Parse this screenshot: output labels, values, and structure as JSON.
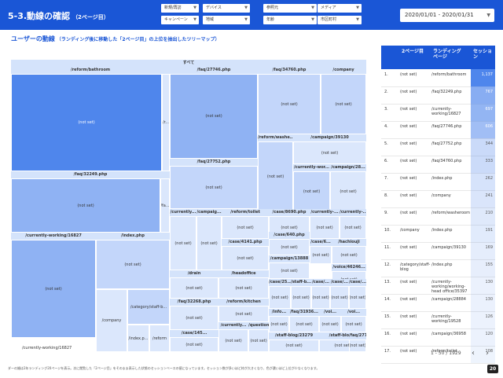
{
  "header": {
    "title": "5-3.動線の確認",
    "subtitle": "（2ページ目）",
    "filters": [
      "新規/再訪",
      "デバイス",
      "参照元",
      "メディア",
      "キャンペーン",
      "地域",
      "年齢",
      "市区町村"
    ],
    "date_range": "2020/01/01 - 2020/01/31"
  },
  "section": {
    "title": "ユーザーの動線",
    "note": "（ランディング後に移動した「2ページ目」の上位を抽出したツリーマップ）"
  },
  "treemap": {
    "root_label": "すべて",
    "groups": [
      {
        "label": "/reform/bathroom",
        "leaves": [
          "(not set)",
          "/r..."
        ]
      },
      {
        "label": "/faq/27746.php",
        "leaves": [
          "(not set)"
        ]
      },
      {
        "label": "/faq/34760.php",
        "leaves": [
          "(not set)"
        ]
      },
      {
        "label": "/company",
        "leaves": [
          "(not set)"
        ]
      },
      {
        "label": "/reform/washe...",
        "leaves": [
          "(not set)"
        ]
      },
      {
        "label": "/campaign/39130",
        "leaves": [
          "(not set)"
        ]
      },
      {
        "label": "/currently-wor...",
        "leaves": [
          "(not set)"
        ]
      },
      {
        "label": "/campaign/28...",
        "leaves": [
          "(not set)"
        ]
      },
      {
        "label": "/faq/32249.php",
        "leaves": [
          "(not set)",
          "/fa..."
        ]
      },
      {
        "label": "/faq/27752.php",
        "leaves": [
          "(not set)"
        ]
      },
      {
        "label": "/currently-working/16827",
        "leaves": [
          "(not set)"
        ],
        "foot": "/currently-working/16827"
      },
      {
        "label": "/index.php",
        "leaves": [
          "(not set)",
          "/category/staff-b...",
          "/company",
          "/index.p...",
          "/reform"
        ]
      },
      {
        "label": "/currently...",
        "leaves": [
          "(not set)"
        ]
      },
      {
        "label": "/campaig...",
        "leaves": [
          "(not set)"
        ]
      },
      {
        "label": "/reform/toilet",
        "leaves": [
          "(not set)"
        ]
      },
      {
        "label": "/case/8690.php",
        "leaves": [
          "(not set)"
        ]
      },
      {
        "label": "/currently-...",
        "leaves": [
          "(not set)"
        ]
      },
      {
        "label": "/currently-...",
        "leaves": [
          "(not set)"
        ]
      },
      {
        "label": "/case/4141.php",
        "leaves": [
          "(not set)"
        ]
      },
      {
        "label": "/case/640.php",
        "leaves": [
          "(not set)"
        ]
      },
      {
        "label": "/case/6...",
        "leaves": [
          "(not set)"
        ]
      },
      {
        "label": "/hachiouji",
        "leaves": [
          "(not set)"
        ]
      },
      {
        "label": "/campaign/13888",
        "leaves": [
          "(not set)"
        ]
      },
      {
        "label": "/voice/46246...",
        "leaves": [
          "(not set)"
        ]
      },
      {
        "label": "/drain",
        "leaves": [
          "(not set)"
        ]
      },
      {
        "label": "/headoffice",
        "leaves": [
          "(not set)"
        ]
      },
      {
        "label": "/case/25...",
        "leaves": [
          "(not set)"
        ]
      },
      {
        "label": "/staff-b...",
        "leaves": [
          "(not set)"
        ]
      },
      {
        "label": "/case/...",
        "leaves": [
          "(not set)"
        ]
      },
      {
        "label": "/case/...",
        "leaves": [
          "(not set)"
        ]
      },
      {
        "label": "/case/...",
        "leaves": [
          "(not set)"
        ]
      },
      {
        "label": "/reform/kitchen",
        "leaves": [
          "(not set)"
        ]
      },
      {
        "label": "/faq/32268.php",
        "leaves": [
          "(not set)"
        ]
      },
      {
        "label": "/info...",
        "leaves": [
          "(not set)"
        ]
      },
      {
        "label": "/faq/31936...",
        "leaves": [
          "(not set)"
        ]
      },
      {
        "label": "/voi...",
        "leaves": [
          "(not set)"
        ]
      },
      {
        "label": "/voi...",
        "leaves": [
          "(not set)"
        ]
      },
      {
        "label": "/currently...",
        "leaves": [
          "(not set)"
        ]
      },
      {
        "label": "/question",
        "leaves": [
          "(not set)"
        ]
      },
      {
        "label": "/case/145...",
        "leaves": [
          "(not set)"
        ]
      },
      {
        "label": "/staff-blog/23279",
        "leaves": [
          "(not set)"
        ]
      },
      {
        "label": "/staff-blog...",
        "leaves": [
          "(not set)"
        ]
      },
      {
        "label": "/faq/2772...",
        "leaves": [
          "(not set)"
        ]
      }
    ]
  },
  "table": {
    "headers": [
      "2ページ目",
      "ランディング ページ",
      "セッション"
    ],
    "rows": [
      {
        "n": "1.",
        "second": "(not set)",
        "landing": "/reform/bathroom",
        "sessions": "1,137"
      },
      {
        "n": "2.",
        "second": "(not set)",
        "landing": "/faq/32249.php",
        "sessions": "767"
      },
      {
        "n": "3.",
        "second": "(not set)",
        "landing": "/currently-working/16827",
        "sessions": "697"
      },
      {
        "n": "4.",
        "second": "(not set)",
        "landing": "/faq/27746.php",
        "sessions": "606"
      },
      {
        "n": "5.",
        "second": "(not set)",
        "landing": "/faq/27752.php",
        "sessions": "344"
      },
      {
        "n": "6.",
        "second": "(not set)",
        "landing": "/faq/34760.php",
        "sessions": "333"
      },
      {
        "n": "7.",
        "second": "(not set)",
        "landing": "/index.php",
        "sessions": "262"
      },
      {
        "n": "8.",
        "second": "(not set)",
        "landing": "/company",
        "sessions": "241"
      },
      {
        "n": "9.",
        "second": "(not set)",
        "landing": "/reform/washeroom",
        "sessions": "210"
      },
      {
        "n": "10.",
        "second": "/company",
        "landing": "/index.php",
        "sessions": "191"
      },
      {
        "n": "11.",
        "second": "(not set)",
        "landing": "/campaign/39130",
        "sessions": "169"
      },
      {
        "n": "12.",
        "second": "/category/staff-blog",
        "landing": "/index.php",
        "sessions": "155"
      },
      {
        "n": "13.",
        "second": "(not set)",
        "landing": "/currently-working/working-head office/35397",
        "sessions": "130"
      },
      {
        "n": "14.",
        "second": "(not set)",
        "landing": "/campaign/28884",
        "sessions": "130"
      },
      {
        "n": "15.",
        "second": "(not set)",
        "landing": "/currently-working/19528",
        "sessions": "126"
      },
      {
        "n": "16.",
        "second": "(not set)",
        "landing": "/campaign/36958",
        "sessions": "120"
      },
      {
        "n": "17.",
        "second": "(not set)",
        "landing": "/reform/toilet",
        "sessions": "108"
      }
    ],
    "max_sessions": 1137,
    "pager": "1 - 50 / 1929"
  },
  "footnote": "ダーの婚は2年ランディング20ページを表示。次に閲覧した「2ページ目」をそのまま表示した状態のセッションベースの値になっています。セッション数が多いほど枠が大きくなり、色が濃いほど上位が少なくなります。",
  "page_number": "20",
  "colors": {
    "header": "#1a56d6",
    "dark": "#4f86ec",
    "light": "#c3d6fa"
  }
}
